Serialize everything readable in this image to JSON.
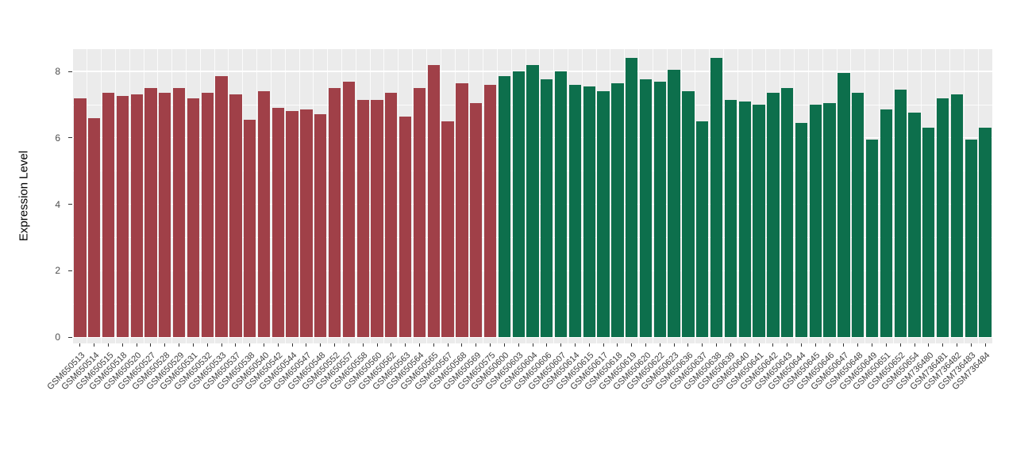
{
  "chart_data": {
    "type": "bar",
    "title": "",
    "xlabel": "",
    "ylabel": "Expression Level",
    "ylim": [
      0,
      8.7
    ],
    "yticks_major": [
      0,
      2,
      4,
      6,
      8
    ],
    "yticks_minor": [
      1,
      3,
      5,
      7
    ],
    "grid": true,
    "legend": "none",
    "plot_bg": "#EBEBEB",
    "grid_color": "#FFFFFF",
    "group_split_index": 30,
    "group_colors": [
      "#A04048",
      "#0D6F4C"
    ],
    "categories": [
      "GSM650513",
      "GSM650514",
      "GSM650515",
      "GSM650518",
      "GSM650520",
      "GSM650527",
      "GSM650528",
      "GSM650529",
      "GSM650531",
      "GSM650532",
      "GSM650533",
      "GSM650537",
      "GSM650538",
      "GSM650540",
      "GSM650542",
      "GSM650544",
      "GSM650547",
      "GSM650548",
      "GSM650552",
      "GSM650557",
      "GSM650558",
      "GSM650560",
      "GSM650562",
      "GSM650563",
      "GSM650564",
      "GSM650565",
      "GSM650567",
      "GSM650568",
      "GSM650569",
      "GSM650575",
      "GSM650600",
      "GSM650603",
      "GSM650604",
      "GSM650606",
      "GSM650607",
      "GSM650614",
      "GSM650615",
      "GSM650617",
      "GSM650618",
      "GSM650619",
      "GSM650620",
      "GSM650622",
      "GSM650623",
      "GSM650636",
      "GSM650637",
      "GSM650638",
      "GSM650639",
      "GSM650640",
      "GSM650641",
      "GSM650642",
      "GSM650643",
      "GSM650644",
      "GSM650645",
      "GSM650646",
      "GSM650647",
      "GSM650648",
      "GSM650649",
      "GSM650651",
      "GSM650652",
      "GSM650654",
      "GSM736480",
      "GSM736481",
      "GSM736482",
      "GSM736483",
      "GSM736484"
    ],
    "values": [
      7.2,
      6.6,
      7.35,
      7.25,
      7.3,
      7.5,
      7.35,
      7.5,
      7.2,
      7.35,
      7.85,
      7.3,
      6.55,
      7.4,
      6.9,
      6.8,
      6.85,
      6.7,
      7.5,
      7.7,
      7.15,
      7.15,
      7.35,
      6.65,
      7.5,
      8.2,
      6.5,
      7.65,
      7.05,
      7.6,
      7.85,
      8.0,
      8.2,
      7.75,
      8.0,
      7.6,
      7.55,
      7.4,
      7.65,
      8.4,
      7.75,
      7.7,
      8.05,
      7.4,
      6.5,
      8.4,
      7.15,
      7.1,
      7.0,
      7.35,
      7.5,
      6.45,
      7.0,
      7.05,
      7.95,
      7.35,
      5.95,
      6.85,
      7.45,
      6.75,
      6.3,
      7.2,
      7.3,
      5.95,
      6.3
    ]
  }
}
